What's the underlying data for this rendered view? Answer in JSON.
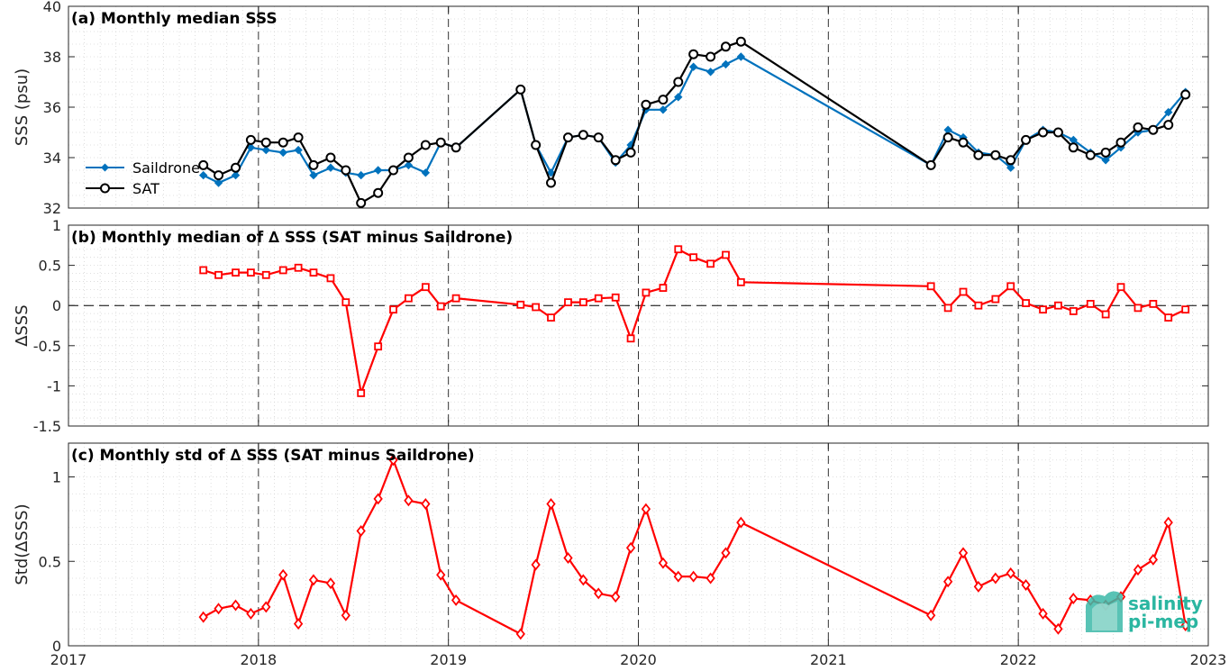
{
  "chart_data": [
    {
      "type": "line",
      "title": "(a) Monthly median SSS",
      "ylabel": "SSS (psu)",
      "xlabel": "",
      "xlim": [
        2017,
        2023
      ],
      "ylim": [
        32,
        40
      ],
      "yticks": [
        32,
        34,
        36,
        38,
        40
      ],
      "grid": true,
      "legend_position": "left",
      "series": [
        {
          "name": "Saildrone",
          "color": "#0072BD",
          "marker": "diamond",
          "x": [
            2017.71,
            2017.79,
            2017.88,
            2017.96,
            2018.04,
            2018.13,
            2018.21,
            2018.29,
            2018.38,
            2018.46,
            2018.54,
            2018.63,
            2018.71,
            2018.79,
            2018.88,
            2018.96,
            2019.04,
            2019.38,
            2019.46,
            2019.54,
            2019.63,
            2019.71,
            2019.79,
            2019.88,
            2019.96,
            2020.04,
            2020.13,
            2020.21,
            2020.29,
            2020.38,
            2020.46,
            2020.54,
            2021.54,
            2021.63,
            2021.71,
            2021.79,
            2021.88,
            2021.96,
            2022.04,
            2022.13,
            2022.21,
            2022.29,
            2022.38,
            2022.46,
            2022.54,
            2022.63,
            2022.71,
            2022.79,
            2022.88
          ],
          "y": [
            33.3,
            33.0,
            33.3,
            34.4,
            34.3,
            34.2,
            34.3,
            33.3,
            33.6,
            33.4,
            33.3,
            33.5,
            33.5,
            33.7,
            33.4,
            34.6,
            34.4,
            36.7,
            34.5,
            33.4,
            34.8,
            34.9,
            34.8,
            33.8,
            34.5,
            35.9,
            35.9,
            36.4,
            37.6,
            37.4,
            37.7,
            38.0,
            33.7,
            35.1,
            34.8,
            34.2,
            34.1,
            33.6,
            34.7,
            35.1,
            35.0,
            34.7,
            34.2,
            33.9,
            34.4,
            35.0,
            35.1,
            35.8,
            36.6
          ]
        },
        {
          "name": "SAT",
          "color": "#000000",
          "marker": "circle",
          "x": [
            2017.71,
            2017.79,
            2017.88,
            2017.96,
            2018.04,
            2018.13,
            2018.21,
            2018.29,
            2018.38,
            2018.46,
            2018.54,
            2018.63,
            2018.71,
            2018.79,
            2018.88,
            2018.96,
            2019.04,
            2019.38,
            2019.46,
            2019.54,
            2019.63,
            2019.71,
            2019.79,
            2019.88,
            2019.96,
            2020.04,
            2020.13,
            2020.21,
            2020.29,
            2020.38,
            2020.46,
            2020.54,
            2021.54,
            2021.63,
            2021.71,
            2021.79,
            2021.88,
            2021.96,
            2022.04,
            2022.13,
            2022.21,
            2022.29,
            2022.38,
            2022.46,
            2022.54,
            2022.63,
            2022.71,
            2022.79,
            2022.88
          ],
          "y": [
            33.7,
            33.3,
            33.6,
            34.7,
            34.6,
            34.6,
            34.8,
            33.7,
            34.0,
            33.5,
            32.2,
            32.6,
            33.5,
            34.0,
            34.5,
            34.6,
            34.4,
            36.7,
            34.5,
            33.0,
            34.8,
            34.9,
            34.8,
            33.9,
            34.2,
            36.1,
            36.3,
            37.0,
            38.1,
            38.0,
            38.4,
            38.6,
            33.7,
            34.8,
            34.6,
            34.1,
            34.1,
            33.9,
            34.7,
            35.0,
            35.0,
            34.4,
            34.1,
            34.2,
            34.6,
            35.2,
            35.1,
            35.3,
            36.5
          ]
        }
      ]
    },
    {
      "type": "line",
      "title": "(b) Monthly median of ∆ SSS (SAT minus Saildrone)",
      "ylabel": "∆SSS",
      "xlabel": "",
      "xlim": [
        2017,
        2023
      ],
      "ylim": [
        -1.5,
        1
      ],
      "yticks": [
        -1.5,
        -1,
        -0.5,
        0,
        0.5,
        1
      ],
      "grid": true,
      "zero_line": true,
      "series": [
        {
          "color": "#FF0000",
          "marker": "square",
          "x": [
            2017.71,
            2017.79,
            2017.88,
            2017.96,
            2018.04,
            2018.13,
            2018.21,
            2018.29,
            2018.38,
            2018.46,
            2018.54,
            2018.63,
            2018.71,
            2018.79,
            2018.88,
            2018.96,
            2019.04,
            2019.38,
            2019.46,
            2019.54,
            2019.63,
            2019.71,
            2019.79,
            2019.88,
            2019.96,
            2020.04,
            2020.13,
            2020.21,
            2020.29,
            2020.38,
            2020.46,
            2020.54,
            2021.54,
            2021.63,
            2021.71,
            2021.79,
            2021.88,
            2021.96,
            2022.04,
            2022.13,
            2022.21,
            2022.29,
            2022.38,
            2022.46,
            2022.54,
            2022.63,
            2022.71,
            2022.79,
            2022.88
          ],
          "y": [
            0.44,
            0.38,
            0.41,
            0.41,
            0.38,
            0.44,
            0.47,
            0.41,
            0.34,
            0.04,
            -1.09,
            -0.51,
            -0.05,
            0.09,
            0.23,
            -0.01,
            0.09,
            0.01,
            -0.02,
            -0.15,
            0.04,
            0.04,
            0.09,
            0.1,
            -0.41,
            0.16,
            0.22,
            0.7,
            0.6,
            0.52,
            0.63,
            0.29,
            0.24,
            -0.03,
            0.17,
            0.0,
            0.08,
            0.24,
            0.03,
            -0.05,
            0.0,
            -0.07,
            0.02,
            -0.11,
            0.23,
            -0.03,
            0.02,
            -0.15,
            -0.05
          ]
        }
      ]
    },
    {
      "type": "line",
      "title": "(c) Monthly std of ∆ SSS (SAT minus Saildrone)",
      "ylabel": "Std(∆SSS)",
      "xlabel": "",
      "xlim": [
        2017,
        2023
      ],
      "ylim": [
        0,
        1.2
      ],
      "yticks": [
        0,
        0.5,
        1
      ],
      "xticks": [
        2017,
        2018,
        2019,
        2020,
        2021,
        2022,
        2023
      ],
      "grid": true,
      "series": [
        {
          "color": "#FF0000",
          "marker": "diamond-open",
          "x": [
            2017.71,
            2017.79,
            2017.88,
            2017.96,
            2018.04,
            2018.13,
            2018.21,
            2018.29,
            2018.38,
            2018.46,
            2018.54,
            2018.63,
            2018.71,
            2018.79,
            2018.88,
            2018.96,
            2019.04,
            2019.38,
            2019.46,
            2019.54,
            2019.63,
            2019.71,
            2019.79,
            2019.88,
            2019.96,
            2020.04,
            2020.13,
            2020.21,
            2020.29,
            2020.38,
            2020.46,
            2020.54,
            2021.54,
            2021.63,
            2021.71,
            2021.79,
            2021.88,
            2021.96,
            2022.04,
            2022.13,
            2022.21,
            2022.29,
            2022.38,
            2022.46,
            2022.54,
            2022.63,
            2022.71,
            2022.79,
            2022.88
          ],
          "y": [
            0.17,
            0.22,
            0.24,
            0.19,
            0.23,
            0.42,
            0.13,
            0.39,
            0.37,
            0.18,
            0.68,
            0.87,
            1.1,
            0.86,
            0.84,
            0.42,
            0.27,
            0.07,
            0.48,
            0.84,
            0.52,
            0.39,
            0.31,
            0.29,
            0.58,
            0.81,
            0.49,
            0.41,
            0.41,
            0.4,
            0.55,
            0.73,
            0.18,
            0.38,
            0.55,
            0.35,
            0.4,
            0.43,
            0.36,
            0.19,
            0.1,
            0.28,
            0.27,
            0.24,
            0.29,
            0.45,
            0.51,
            0.73,
            0.12
          ]
        }
      ]
    }
  ],
  "legend": {
    "items": [
      {
        "label": "Saildrone",
        "color": "#0072BD"
      },
      {
        "label": "SAT",
        "color": "#000000"
      }
    ]
  },
  "logo": {
    "line1": "salinity",
    "line2": "pi-mep"
  }
}
